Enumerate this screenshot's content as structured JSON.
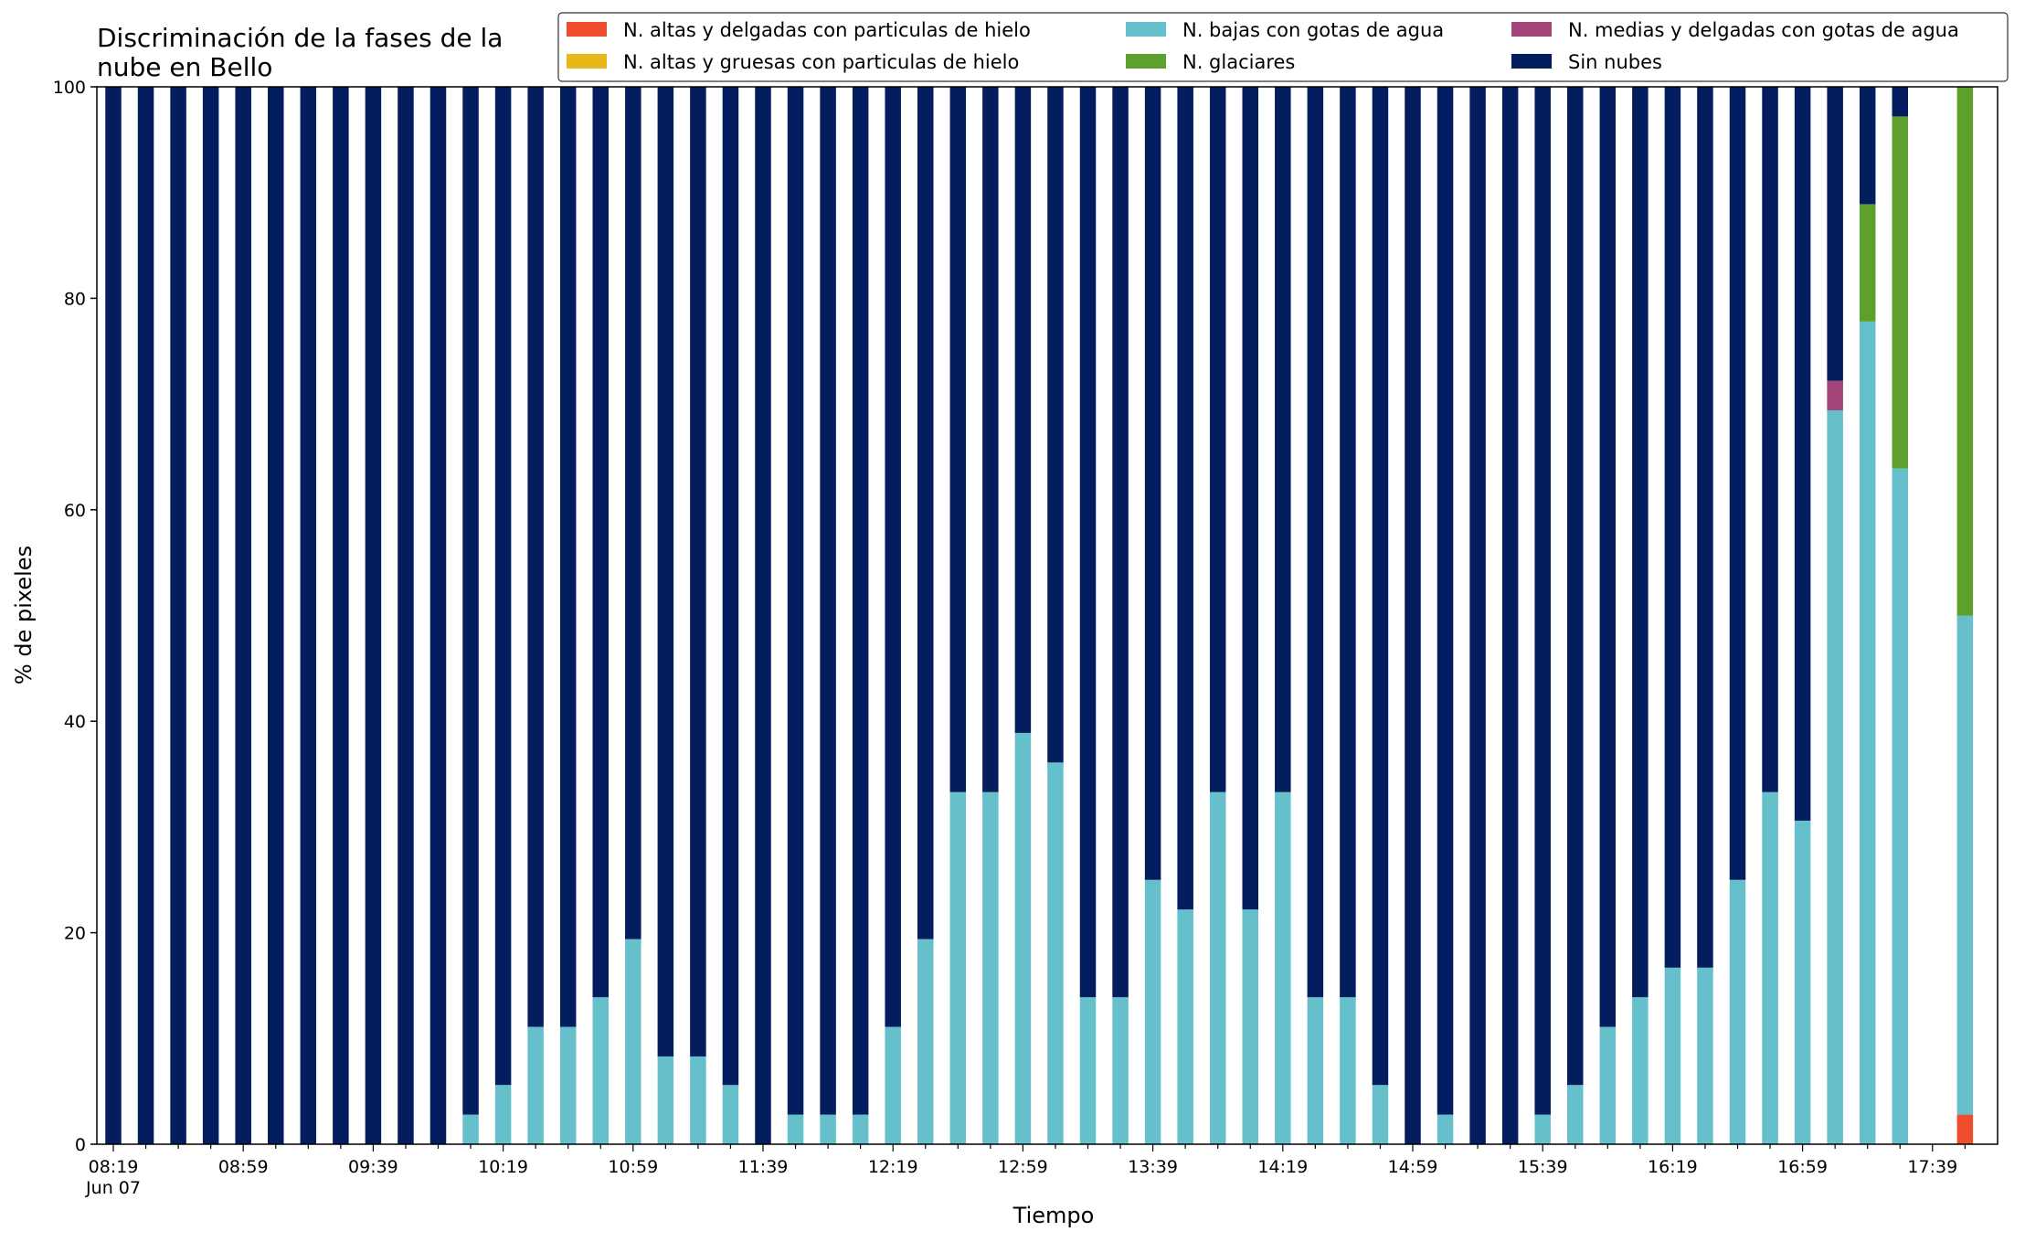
{
  "chart_data": {
    "type": "bar",
    "stacked": true,
    "title": [
      "Discriminación de la fases de la",
      "nube en Bello"
    ],
    "xlabel": "Tiempo",
    "ylabel": "% de pixeles",
    "ylim": [
      0,
      100
    ],
    "yticks": [
      0,
      20,
      40,
      60,
      80,
      100
    ],
    "grid": false,
    "legend": "top-right",
    "x_tick_labels": [
      "08:19",
      "08:59",
      "09:39",
      "10:19",
      "10:59",
      "11:39",
      "12:19",
      "12:59",
      "13:39",
      "14:19",
      "14:59",
      "15:39",
      "16:19",
      "16:59",
      "17:39"
    ],
    "x_tick_sublabel": "Jun 07",
    "categories": [
      "08:19",
      "08:29",
      "08:39",
      "08:49",
      "08:59",
      "09:09",
      "09:19",
      "09:29",
      "09:39",
      "09:49",
      "09:59",
      "10:09",
      "10:19",
      "10:29",
      "10:39",
      "10:49",
      "10:59",
      "11:09",
      "11:19",
      "11:29",
      "11:39",
      "11:49",
      "11:59",
      "12:09",
      "12:19",
      "12:29",
      "12:39",
      "12:49",
      "12:59",
      "13:09",
      "13:19",
      "13:29",
      "13:39",
      "13:49",
      "13:59",
      "14:09",
      "14:19",
      "14:29",
      "14:39",
      "14:49",
      "14:59",
      "15:09",
      "15:19",
      "15:29",
      "15:39",
      "15:49",
      "15:59",
      "16:09",
      "16:19",
      "16:29",
      "16:39",
      "16:49",
      "16:59",
      "17:09",
      "17:19",
      "17:29",
      "17:39",
      "17:49"
    ],
    "series": [
      {
        "name": "N. altas y delgadas con particulas de hielo",
        "color": "#f04d2d",
        "values": [
          0,
          0,
          0,
          0,
          0,
          0,
          0,
          0,
          0,
          0,
          0,
          0,
          0,
          0,
          0,
          0,
          0,
          0,
          0,
          0,
          0,
          0,
          0,
          0,
          0,
          0,
          0,
          0,
          0,
          0,
          0,
          0,
          0,
          0,
          0,
          0,
          0,
          0,
          0,
          0,
          0,
          0,
          0,
          0,
          0,
          0,
          0,
          0,
          0,
          0,
          0,
          0,
          0,
          0,
          0,
          0,
          0,
          2.8
        ]
      },
      {
        "name": "N. altas y gruesas con particulas de hielo",
        "color": "#e8b81a",
        "values": [
          0,
          0,
          0,
          0,
          0,
          0,
          0,
          0,
          0,
          0,
          0,
          0,
          0,
          0,
          0,
          0,
          0,
          0,
          0,
          0,
          0,
          0,
          0,
          0,
          0,
          0,
          0,
          0,
          0,
          0,
          0,
          0,
          0,
          0,
          0,
          0,
          0,
          0,
          0,
          0,
          0,
          0,
          0,
          0,
          0,
          0,
          0,
          0,
          0,
          0,
          0,
          0,
          0,
          0,
          0,
          0,
          0,
          0
        ]
      },
      {
        "name": "N. bajas con gotas de agua",
        "color": "#66c0cb",
        "values": [
          0,
          0,
          0,
          0,
          0,
          0,
          0,
          0,
          0,
          0,
          0,
          2.8,
          5.6,
          11.1,
          11.1,
          13.9,
          19.4,
          8.3,
          8.3,
          5.6,
          0,
          2.8,
          2.8,
          2.8,
          11.1,
          19.4,
          33.3,
          33.3,
          38.9,
          36.1,
          13.9,
          13.9,
          25,
          22.2,
          33.3,
          22.2,
          33.3,
          13.9,
          13.9,
          5.6,
          0,
          2.8,
          0,
          0,
          2.8,
          5.6,
          11.1,
          13.9,
          16.7,
          16.7,
          25,
          33.3,
          30.6,
          69.4,
          77.8,
          63.9,
          0,
          47.2
        ]
      },
      {
        "name": "N. glaciares",
        "color": "#5ea02c",
        "values": [
          0,
          0,
          0,
          0,
          0,
          0,
          0,
          0,
          0,
          0,
          0,
          0,
          0,
          0,
          0,
          0,
          0,
          0,
          0,
          0,
          0,
          0,
          0,
          0,
          0,
          0,
          0,
          0,
          0,
          0,
          0,
          0,
          0,
          0,
          0,
          0,
          0,
          0,
          0,
          0,
          0,
          0,
          0,
          0,
          0,
          0,
          0,
          0,
          0,
          0,
          0,
          0,
          0,
          0,
          11.1,
          33.3,
          0,
          50
        ]
      },
      {
        "name": "N. medias y delgadas con gotas de agua",
        "color": "#a3447a",
        "values": [
          0,
          0,
          0,
          0,
          0,
          0,
          0,
          0,
          0,
          0,
          0,
          0,
          0,
          0,
          0,
          0,
          0,
          0,
          0,
          0,
          0,
          0,
          0,
          0,
          0,
          0,
          0,
          0,
          0,
          0,
          0,
          0,
          0,
          0,
          0,
          0,
          0,
          0,
          0,
          0,
          0,
          0,
          0,
          0,
          0,
          0,
          0,
          0,
          0,
          0,
          0,
          0,
          0,
          2.8,
          0,
          0,
          0,
          0
        ]
      },
      {
        "name": "Sin nubes",
        "color": "#031d5e",
        "values": [
          100,
          100,
          100,
          100,
          100,
          100,
          100,
          100,
          100,
          100,
          100,
          97.2,
          94.4,
          88.9,
          88.9,
          86.1,
          80.6,
          91.7,
          91.7,
          94.4,
          100,
          97.2,
          97.2,
          97.2,
          88.9,
          80.6,
          66.7,
          66.7,
          61.1,
          63.9,
          86.1,
          86.1,
          75,
          77.8,
          66.7,
          77.8,
          66.7,
          86.1,
          86.1,
          94.4,
          100,
          97.2,
          100,
          100,
          97.2,
          94.4,
          88.9,
          86.1,
          83.3,
          83.3,
          75,
          66.7,
          69.4,
          27.8,
          11.1,
          2.8,
          0,
          0
        ]
      }
    ]
  }
}
